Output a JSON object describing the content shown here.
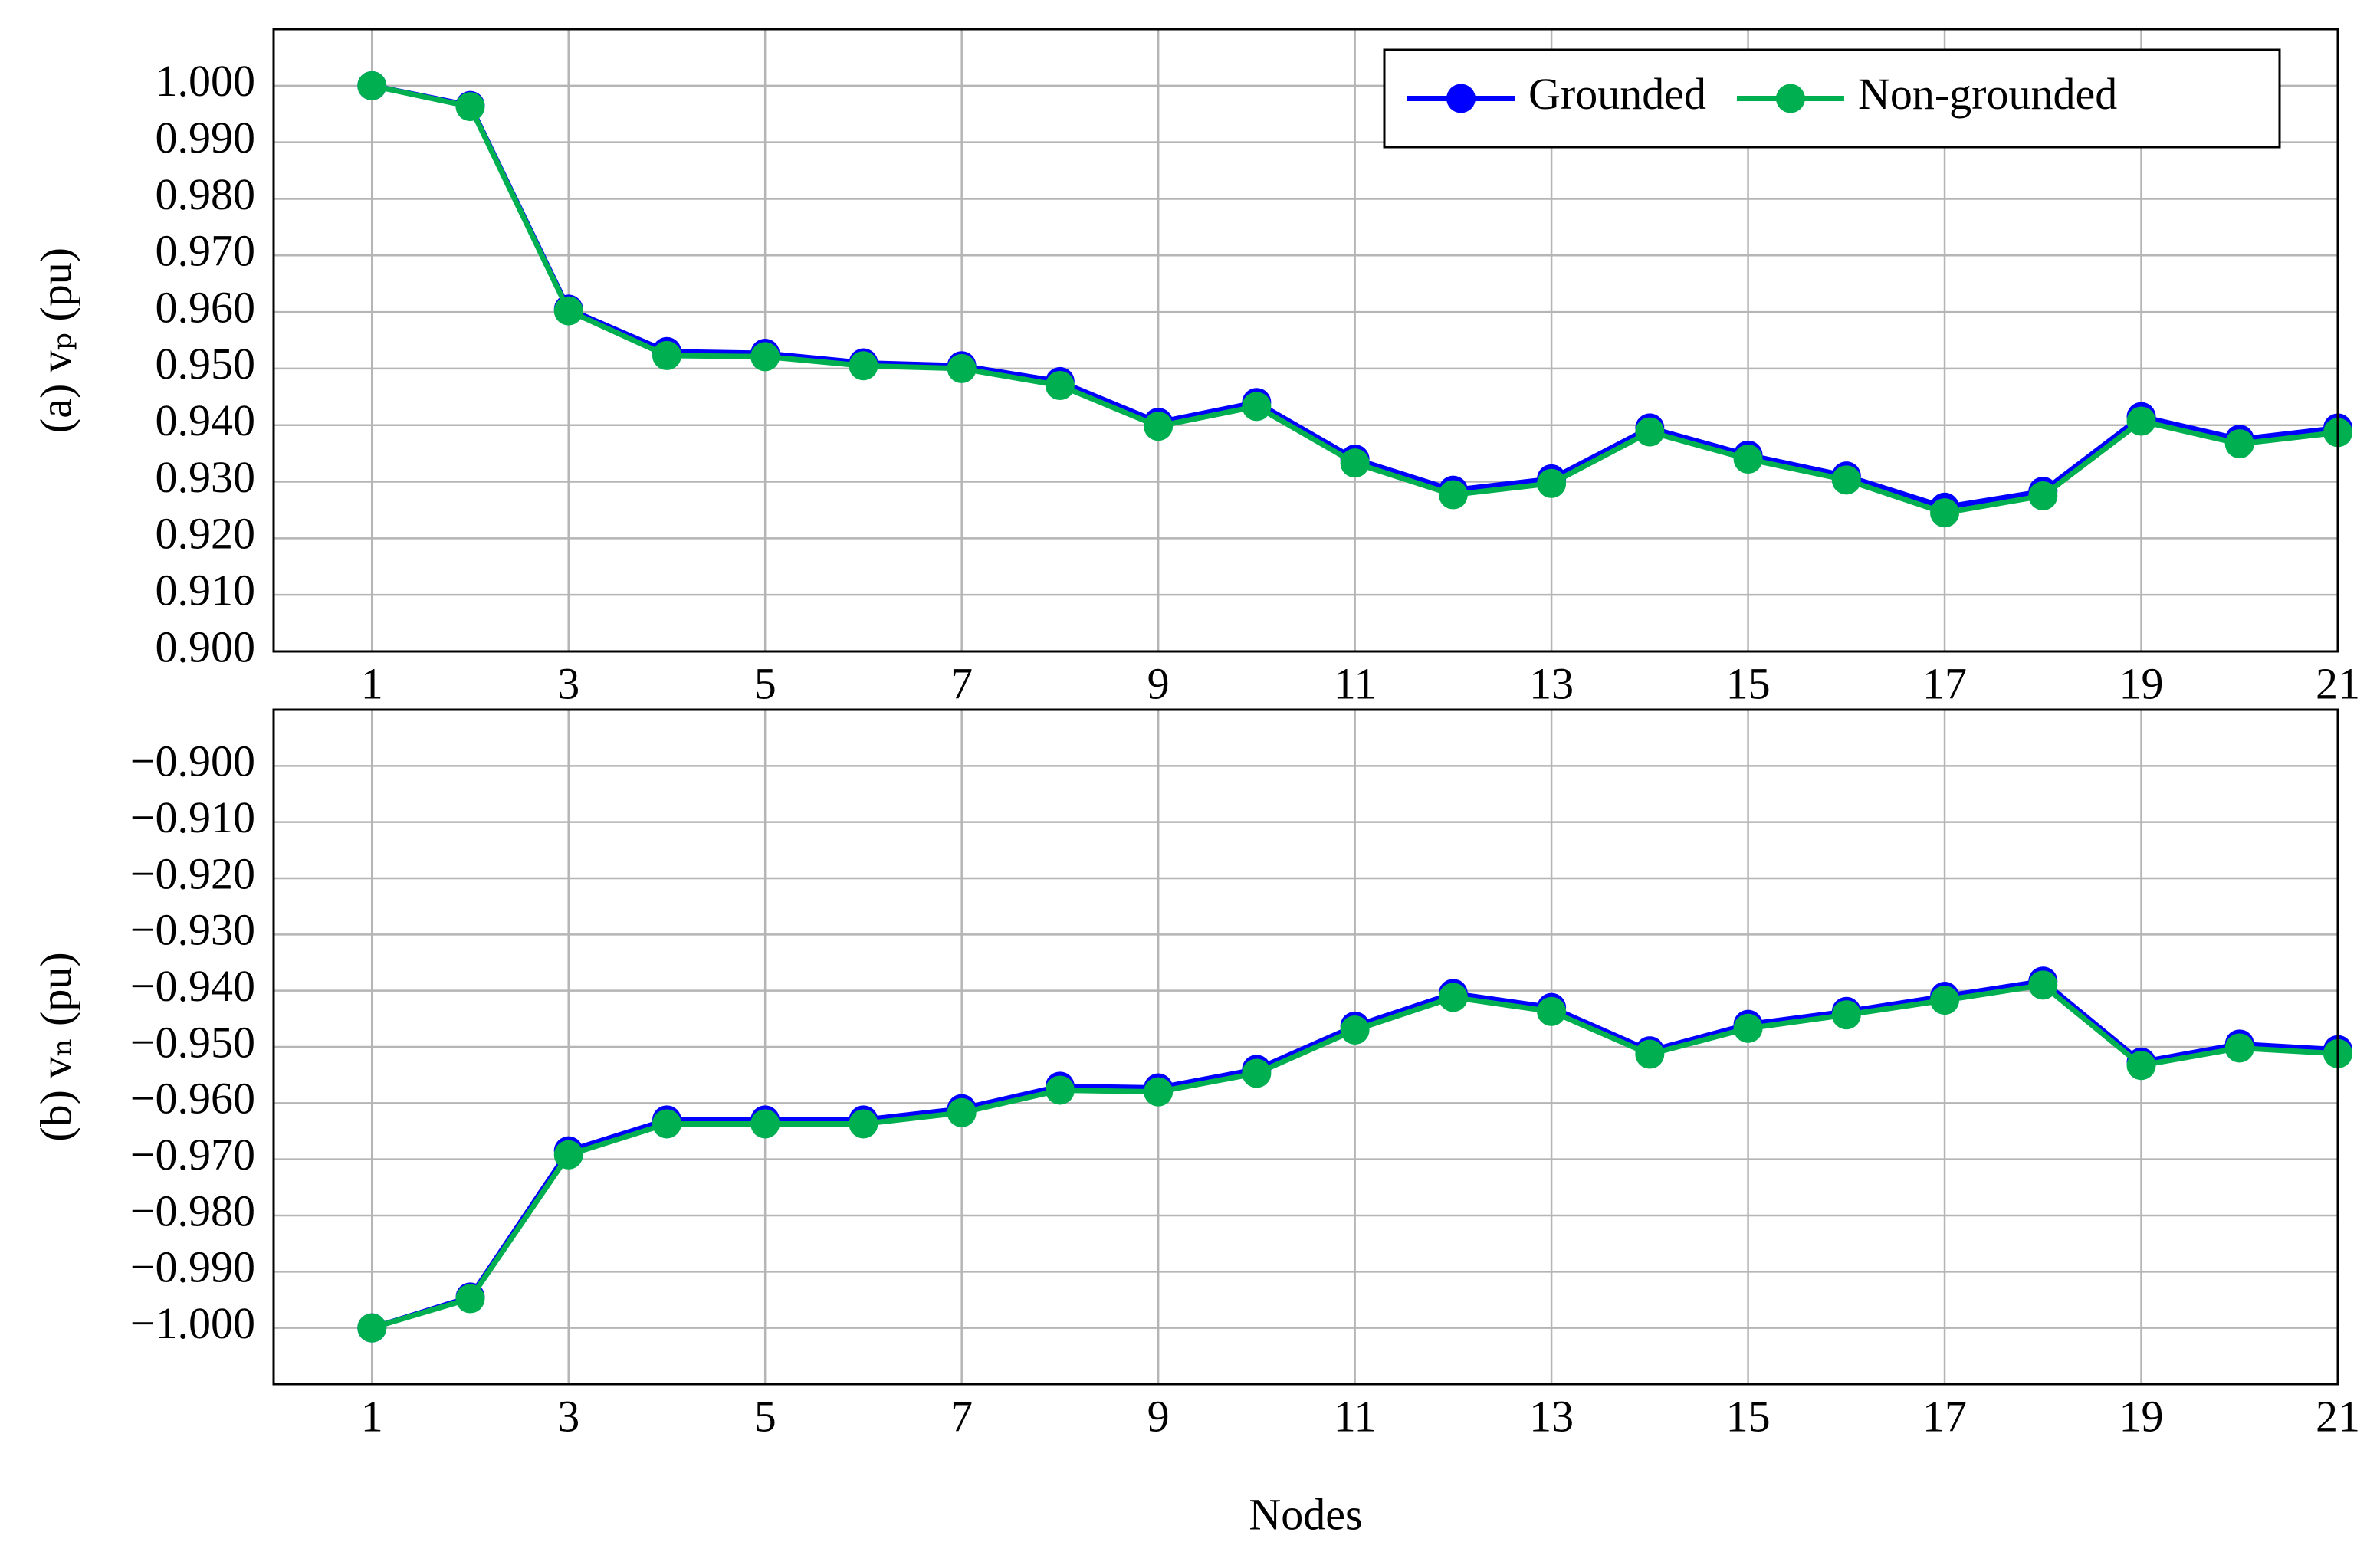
{
  "chart_data": [
    {
      "type": "line",
      "y_label": "(a) vₚ (pu)",
      "x": [
        1,
        2,
        3,
        4,
        5,
        6,
        7,
        8,
        9,
        10,
        11,
        12,
        13,
        14,
        15,
        16,
        17,
        18,
        19,
        20,
        21
      ],
      "xlim": [
        0,
        21
      ],
      "xticks": [
        1,
        3,
        5,
        7,
        9,
        11,
        13,
        15,
        17,
        19,
        21
      ],
      "ylim": [
        0.9,
        1.01
      ],
      "yticks": [
        {
          "value": 0.9,
          "label": "0.900"
        },
        {
          "value": 0.91,
          "label": "0.910"
        },
        {
          "value": 0.92,
          "label": "0.920"
        },
        {
          "value": 0.93,
          "label": "0.930"
        },
        {
          "value": 0.94,
          "label": "0.940"
        },
        {
          "value": 0.95,
          "label": "0.950"
        },
        {
          "value": 0.96,
          "label": "0.960"
        },
        {
          "value": 0.97,
          "label": "0.970"
        },
        {
          "value": 0.98,
          "label": "0.980"
        },
        {
          "value": 0.99,
          "label": "0.990"
        },
        {
          "value": 1.0,
          "label": "1.000"
        }
      ],
      "grid": true,
      "legend": "upper right",
      "series": [
        {
          "name": "Grounded",
          "color": "#0000ff",
          "values": [
            1.0,
            0.9965,
            0.9605,
            0.953,
            0.9527,
            0.951,
            0.9505,
            0.9477,
            0.9405,
            0.944,
            0.934,
            0.9285,
            0.9305,
            0.9395,
            0.9347,
            0.931,
            0.9255,
            0.9283,
            0.9415,
            0.9375,
            0.9395
          ]
        },
        {
          "name": "Non-grounded",
          "color": "#00b050",
          "values": [
            1.0,
            0.9963,
            0.9602,
            0.9523,
            0.9521,
            0.9505,
            0.95,
            0.947,
            0.9398,
            0.9433,
            0.9333,
            0.9277,
            0.9297,
            0.9388,
            0.934,
            0.9303,
            0.9245,
            0.9275,
            0.9407,
            0.9367,
            0.9387
          ]
        }
      ]
    },
    {
      "type": "line",
      "y_label": "(b) vₙ (pu)",
      "x_label": "Nodes",
      "x": [
        1,
        2,
        3,
        4,
        5,
        6,
        7,
        8,
        9,
        10,
        11,
        12,
        13,
        14,
        15,
        16,
        17,
        18,
        19,
        20,
        21
      ],
      "xlim": [
        0,
        21
      ],
      "xticks": [
        1,
        3,
        5,
        7,
        9,
        11,
        13,
        15,
        17,
        19,
        21
      ],
      "ylim": [
        -1.01,
        -0.89
      ],
      "yticks": [
        {
          "value": -1.0,
          "label": "−1.000"
        },
        {
          "value": -0.99,
          "label": "−0.990"
        },
        {
          "value": -0.98,
          "label": "−0.980"
        },
        {
          "value": -0.97,
          "label": "−0.970"
        },
        {
          "value": -0.96,
          "label": "−0.960"
        },
        {
          "value": -0.95,
          "label": "−0.950"
        },
        {
          "value": -0.94,
          "label": "−0.940"
        },
        {
          "value": -0.93,
          "label": "−0.930"
        },
        {
          "value": -0.92,
          "label": "−0.920"
        },
        {
          "value": -0.91,
          "label": "−0.910"
        },
        {
          "value": -0.9,
          "label": "−0.900"
        }
      ],
      "grid": true,
      "series": [
        {
          "color": "#0000ff",
          "values": [
            -1.0,
            -0.9945,
            -0.9685,
            -0.963,
            -0.963,
            -0.963,
            -0.961,
            -0.957,
            -0.9573,
            -0.954,
            -0.9463,
            -0.9405,
            -0.943,
            -0.9507,
            -0.946,
            -0.9437,
            -0.941,
            -0.9383,
            -0.9527,
            -0.9495,
            -0.9505
          ]
        },
        {
          "color": "#00b050",
          "values": [
            -1.0,
            -0.9948,
            -0.9692,
            -0.9637,
            -0.9637,
            -0.9637,
            -0.9617,
            -0.9577,
            -0.958,
            -0.9547,
            -0.947,
            -0.9412,
            -0.9437,
            -0.9513,
            -0.9467,
            -0.9443,
            -0.9417,
            -0.939,
            -0.9533,
            -0.9502,
            -0.9512
          ]
        }
      ]
    }
  ]
}
